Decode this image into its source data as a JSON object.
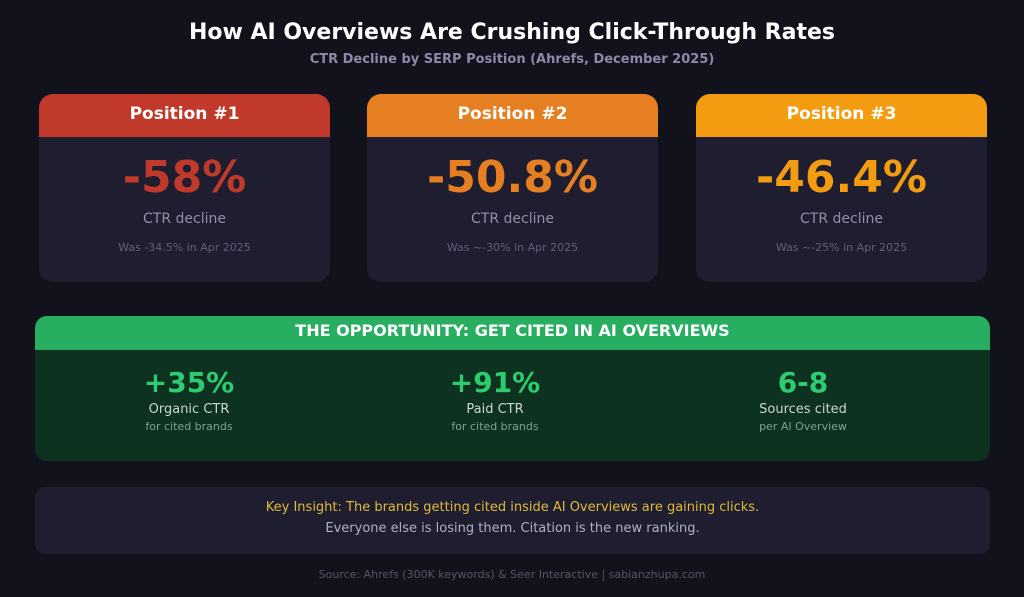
{
  "header": {
    "title": "How AI Overviews Are Crushing Click-Through Rates",
    "subtitle": "CTR Decline by SERP Position (Ahrefs, December 2025)"
  },
  "positions": [
    {
      "label": "Position #1",
      "value": "-58%",
      "metric": "CTR decline",
      "was": "Was -34.5% in Apr 2025",
      "color": "#c0392b"
    },
    {
      "label": "Position #2",
      "value": "-50.8%",
      "metric": "CTR decline",
      "was": "Was ~-30% in Apr 2025",
      "color": "#e67e22"
    },
    {
      "label": "Position #3",
      "value": "-46.4%",
      "metric": "CTR decline",
      "was": "Was ~-25% in Apr 2025",
      "color": "#f39c12"
    }
  ],
  "opportunity": {
    "title": "THE OPPORTUNITY: GET CITED IN AI OVERVIEWS",
    "color": "#27ae60",
    "stats": [
      {
        "value": "+35%",
        "label": "Organic CTR",
        "sub": "for cited brands"
      },
      {
        "value": "+91%",
        "label": "Paid CTR",
        "sub": "for cited brands"
      },
      {
        "value": "6-8",
        "label": "Sources cited",
        "sub": "per AI Overview"
      }
    ]
  },
  "insight": {
    "line1": "Key Insight: The brands getting cited inside AI Overviews are gaining clicks.",
    "line2": "Everyone else is losing them. Citation is the new ranking."
  },
  "footer": "Source: Ahrefs (300K keywords) & Seer Interactive | sabianzhupa.com"
}
